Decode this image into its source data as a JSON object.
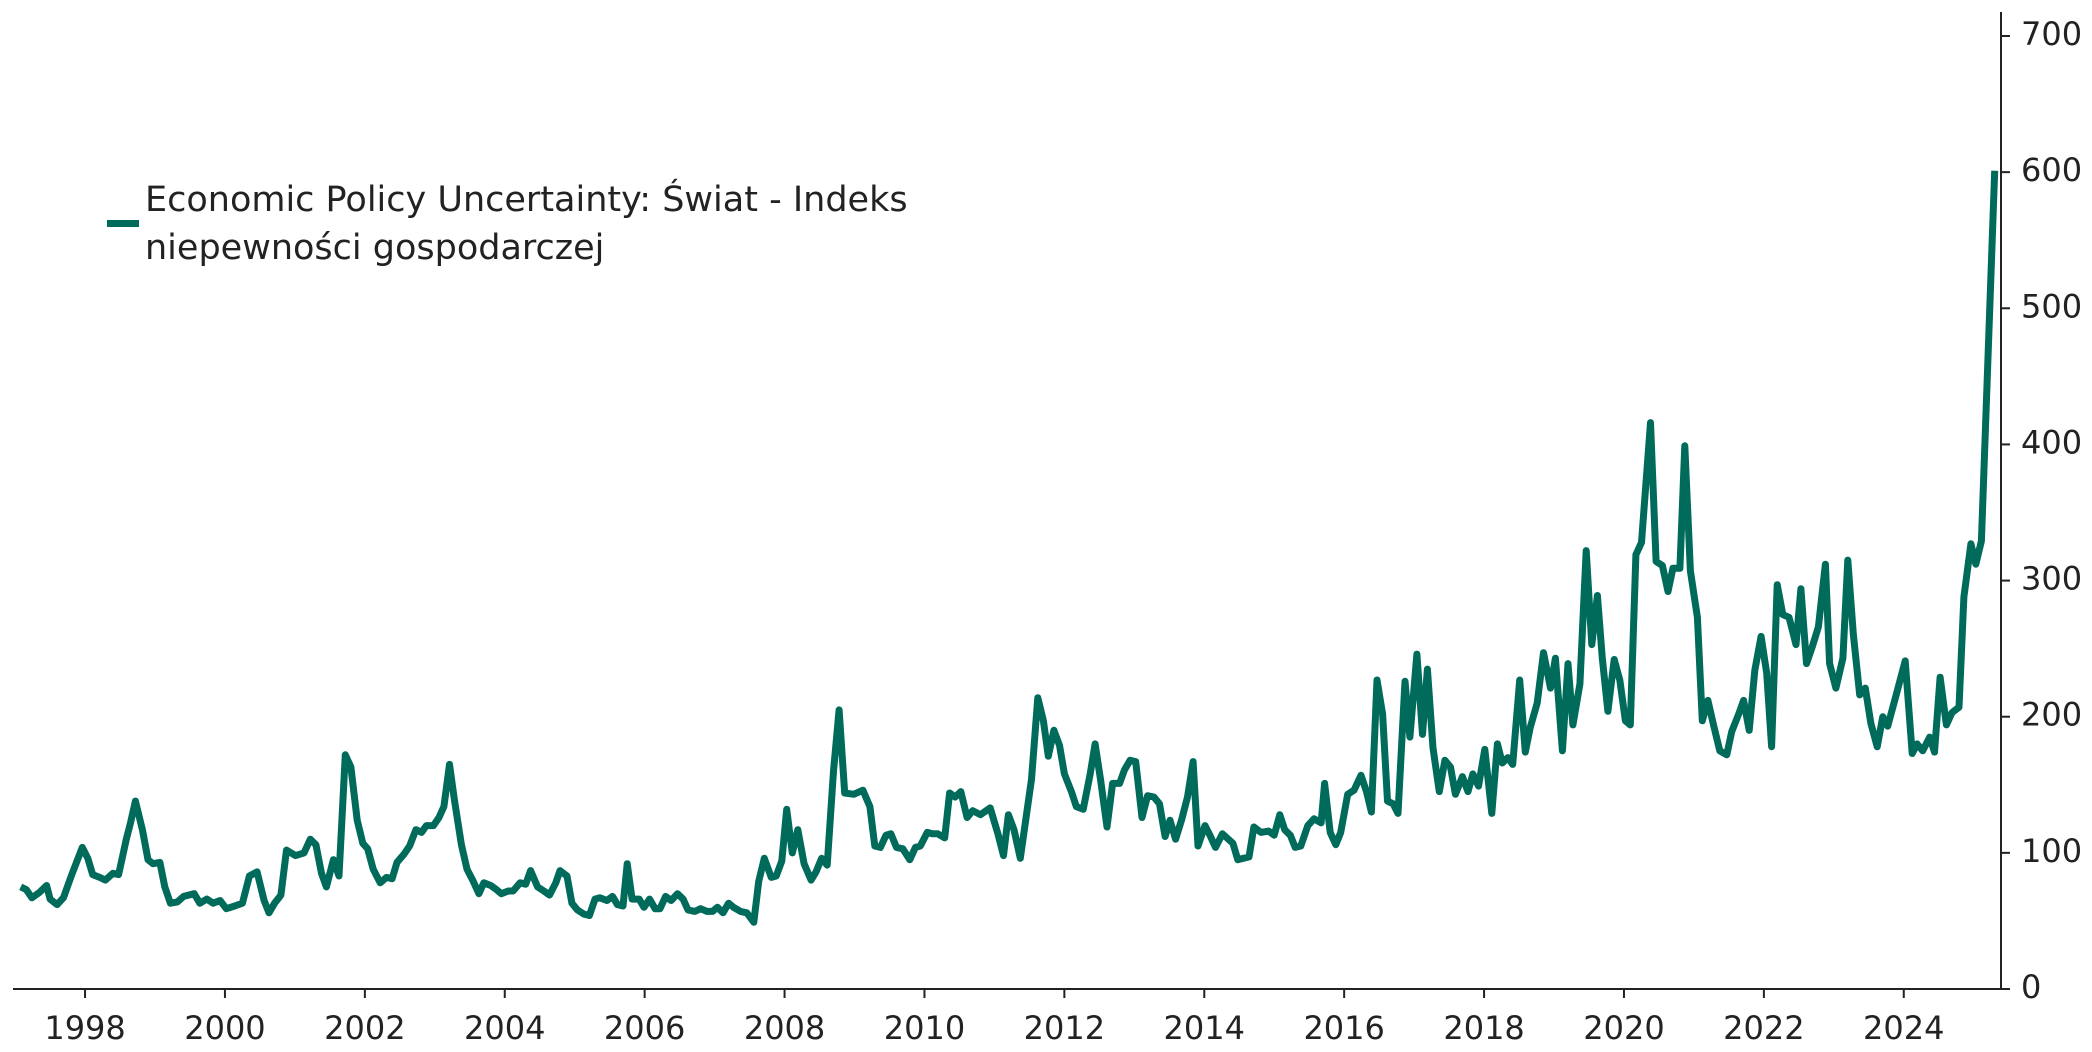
{
  "chart_data": {
    "type": "line",
    "x": [
      1997.08,
      1997.16,
      1997.24,
      1997.35,
      1997.45,
      1997.5,
      1997.6,
      1997.69,
      1997.81,
      1997.96,
      1998.04,
      1998.11,
      1998.21,
      1998.29,
      1998.4,
      1998.48,
      1998.59,
      1998.65,
      1998.72,
      1998.82,
      1998.9,
      1998.97,
      1999.07,
      1999.14,
      1999.22,
      1999.32,
      1999.41,
      1999.56,
      1999.64,
      1999.74,
      1999.83,
      1999.93,
      2000.02,
      2000.14,
      2000.25,
      2000.35,
      2000.46,
      2000.56,
      2000.63,
      2000.71,
      2000.8,
      2000.88,
      2001.01,
      2001.13,
      2001.22,
      2001.3,
      2001.38,
      2001.45,
      2001.55,
      2001.63,
      2001.72,
      2001.8,
      2001.89,
      2001.97,
      2002.04,
      2002.12,
      2002.22,
      2002.31,
      2002.39,
      2002.46,
      2002.56,
      2002.64,
      2002.73,
      2002.81,
      2002.88,
      2002.98,
      2003.06,
      2003.13,
      2003.21,
      2003.28,
      2003.38,
      2003.46,
      2003.55,
      2003.63,
      2003.7,
      2003.8,
      2003.88,
      2003.95,
      2004.05,
      2004.12,
      2004.22,
      2004.3,
      2004.37,
      2004.47,
      2004.56,
      2004.64,
      2004.73,
      2004.79,
      2004.89,
      2004.96,
      2005.04,
      2005.13,
      2005.21,
      2005.29,
      2005.36,
      2005.46,
      2005.54,
      2005.61,
      2005.69,
      2005.75,
      2005.82,
      2005.92,
      2005.99,
      2006.07,
      2006.15,
      2006.22,
      2006.3,
      2006.38,
      2006.47,
      2006.55,
      2006.62,
      2006.72,
      2006.8,
      2006.89,
      2006.97,
      2007.04,
      2007.12,
      2007.2,
      2007.27,
      2007.37,
      2007.46,
      2007.56,
      2007.63,
      2007.71,
      2007.81,
      2007.88,
      2007.96,
      2008.03,
      2008.11,
      2008.19,
      2008.28,
      2008.38,
      2008.45,
      2008.53,
      2008.61,
      2008.7,
      2008.78,
      2008.86,
      2008.99,
      2009.12,
      2009.22,
      2009.29,
      2009.37,
      2009.45,
      2009.52,
      2009.6,
      2009.69,
      2009.79,
      2009.87,
      2009.94,
      2010.04,
      2010.11,
      2010.19,
      2010.29,
      2010.36,
      2010.44,
      2010.52,
      2010.61,
      2010.69,
      2010.8,
      2010.94,
      2011.05,
      2011.13,
      2011.2,
      2011.28,
      2011.37,
      2011.53,
      2011.62,
      2011.7,
      2011.77,
      2011.85,
      2011.93,
      2012.0,
      2012.1,
      2012.17,
      2012.27,
      2012.37,
      2012.44,
      2012.52,
      2012.61,
      2012.69,
      2012.79,
      2012.86,
      2012.94,
      2013.02,
      2013.11,
      2013.19,
      2013.28,
      2013.36,
      2013.44,
      2013.51,
      2013.59,
      2013.68,
      2013.76,
      2013.84,
      2013.91,
      2014.01,
      2014.08,
      2014.16,
      2014.26,
      2014.41,
      2014.48,
      2014.64,
      2014.71,
      2014.81,
      2014.92,
      2015.0,
      2015.08,
      2015.15,
      2015.23,
      2015.3,
      2015.38,
      2015.48,
      2015.57,
      2015.67,
      2015.72,
      2015.8,
      2015.88,
      2015.95,
      2016.05,
      2016.14,
      2016.24,
      2016.32,
      2016.39,
      2016.47,
      2016.55,
      2016.62,
      2016.7,
      2016.77,
      2016.87,
      2016.94,
      2017.04,
      2017.12,
      2017.19,
      2017.27,
      2017.36,
      2017.44,
      2017.52,
      2017.59,
      2017.69,
      2017.77,
      2017.84,
      2017.92,
      2018.01,
      2018.11,
      2018.19,
      2018.26,
      2018.34,
      2018.41,
      2018.51,
      2018.59,
      2018.66,
      2018.76,
      2018.85,
      2018.95,
      2019.02,
      2019.12,
      2019.2,
      2019.27,
      2019.37,
      2019.46,
      2019.54,
      2019.62,
      2019.69,
      2019.77,
      2019.86,
      2019.94,
      2020.02,
      2020.09,
      2020.17,
      2020.25,
      2020.38,
      2020.46,
      2020.55,
      2020.63,
      2020.7,
      2020.8,
      2020.87,
      2020.95,
      2021.05,
      2021.12,
      2021.2,
      2021.28,
      2021.37,
      2021.47,
      2021.54,
      2021.64,
      2021.71,
      2021.79,
      2021.87,
      2021.96,
      2022.04,
      2022.11,
      2022.19,
      2022.27,
      2022.36,
      2022.46,
      2022.53,
      2022.61,
      2022.69,
      2022.78,
      2022.88,
      2022.94,
      2023.03,
      2023.13,
      2023.2,
      2023.28,
      2023.37,
      2023.45,
      2023.53,
      2023.62,
      2023.7,
      2023.77,
      2023.87,
      2024.02,
      2024.12,
      2024.19,
      2024.27,
      2024.37,
      2024.44,
      2024.52,
      2024.61,
      2024.69,
      2024.79,
      2024.86,
      2024.96,
      2025.03,
      2025.11,
      2025.3
    ],
    "series": [
      {
        "name": "Economic Policy Uncertainty: Świat - Indeks niepewności gospodarczej",
        "color": "#006b5b",
        "values": [
          75,
          73,
          67,
          71,
          76,
          66,
          62,
          67,
          84,
          104,
          96,
          84,
          82,
          80,
          85,
          84,
          110,
          122,
          138,
          117,
          95,
          92,
          93,
          75,
          63,
          64,
          68,
          70,
          63,
          66,
          63,
          65,
          59,
          61,
          63,
          83,
          86,
          65,
          56,
          63,
          69,
          102,
          98,
          100,
          110,
          106,
          85,
          75,
          95,
          83,
          172,
          163,
          124,
          107,
          103,
          88,
          78,
          82,
          81,
          93,
          99,
          105,
          117,
          115,
          120,
          120,
          126,
          134,
          165,
          139,
          106,
          88,
          79,
          70,
          78,
          76,
          73,
          70,
          72,
          72,
          78,
          77,
          87,
          75,
          72,
          69,
          78,
          87,
          83,
          63,
          58,
          55,
          54,
          66,
          67,
          65,
          68,
          62,
          61,
          92,
          66,
          66,
          60,
          66,
          59,
          59,
          68,
          65,
          70,
          66,
          58,
          57,
          59,
          57,
          57,
          60,
          56,
          63,
          60,
          57,
          56,
          49,
          79,
          96,
          82,
          83,
          94,
          132,
          100,
          117,
          92,
          80,
          86,
          96,
          91,
          160,
          205,
          144,
          143,
          146,
          134,
          105,
          104,
          113,
          114,
          104,
          103,
          95,
          104,
          105,
          115,
          114,
          114,
          111,
          144,
          141,
          145,
          126,
          131,
          128,
          133,
          114,
          98,
          128,
          117,
          96,
          154,
          214,
          197,
          171,
          190,
          179,
          158,
          145,
          134,
          132,
          158,
          180,
          153,
          119,
          151,
          151,
          161,
          168,
          167,
          126,
          142,
          141,
          136,
          112,
          124,
          110,
          125,
          141,
          167,
          105,
          120,
          113,
          104,
          114,
          107,
          95,
          97,
          119,
          115,
          116,
          113,
          128,
          117,
          113,
          104,
          105,
          120,
          125,
          122,
          151,
          115,
          106,
          115,
          143,
          146,
          157,
          145,
          130,
          227,
          202,
          138,
          136,
          129,
          226,
          185,
          246,
          187,
          235,
          177,
          145,
          168,
          163,
          143,
          156,
          145,
          158,
          149,
          176,
          129,
          180,
          166,
          170,
          165,
          227,
          174,
          192,
          210,
          247,
          221,
          243,
          175,
          239,
          194,
          224,
          322,
          253,
          289,
          243,
          204,
          242,
          227,
          197,
          194,
          319,
          328,
          416,
          314,
          311,
          292,
          309,
          309,
          399,
          307,
          273,
          197,
          212,
          194,
          175,
          172,
          189,
          202,
          212,
          190,
          234,
          259,
          232,
          178,
          297,
          275,
          273,
          253,
          294,
          239,
          251,
          266,
          312,
          239,
          221,
          243,
          315,
          260,
          216,
          221,
          195,
          178,
          200,
          193,
          212,
          241,
          173,
          180,
          175,
          185,
          174,
          229,
          194,
          203,
          207,
          288,
          327,
          312,
          329,
          601
        ]
      }
    ],
    "xlim": [
      1996.97,
      2025.39
    ],
    "xticks": [
      1998,
      2000,
      2002,
      2004,
      2006,
      2008,
      2010,
      2012,
      2014,
      2016,
      2018,
      2020,
      2022,
      2024
    ],
    "ylim": [
      0,
      700
    ],
    "yticks": [
      0,
      100,
      200,
      300,
      400,
      500,
      600,
      700
    ],
    "legend": "upper left"
  }
}
